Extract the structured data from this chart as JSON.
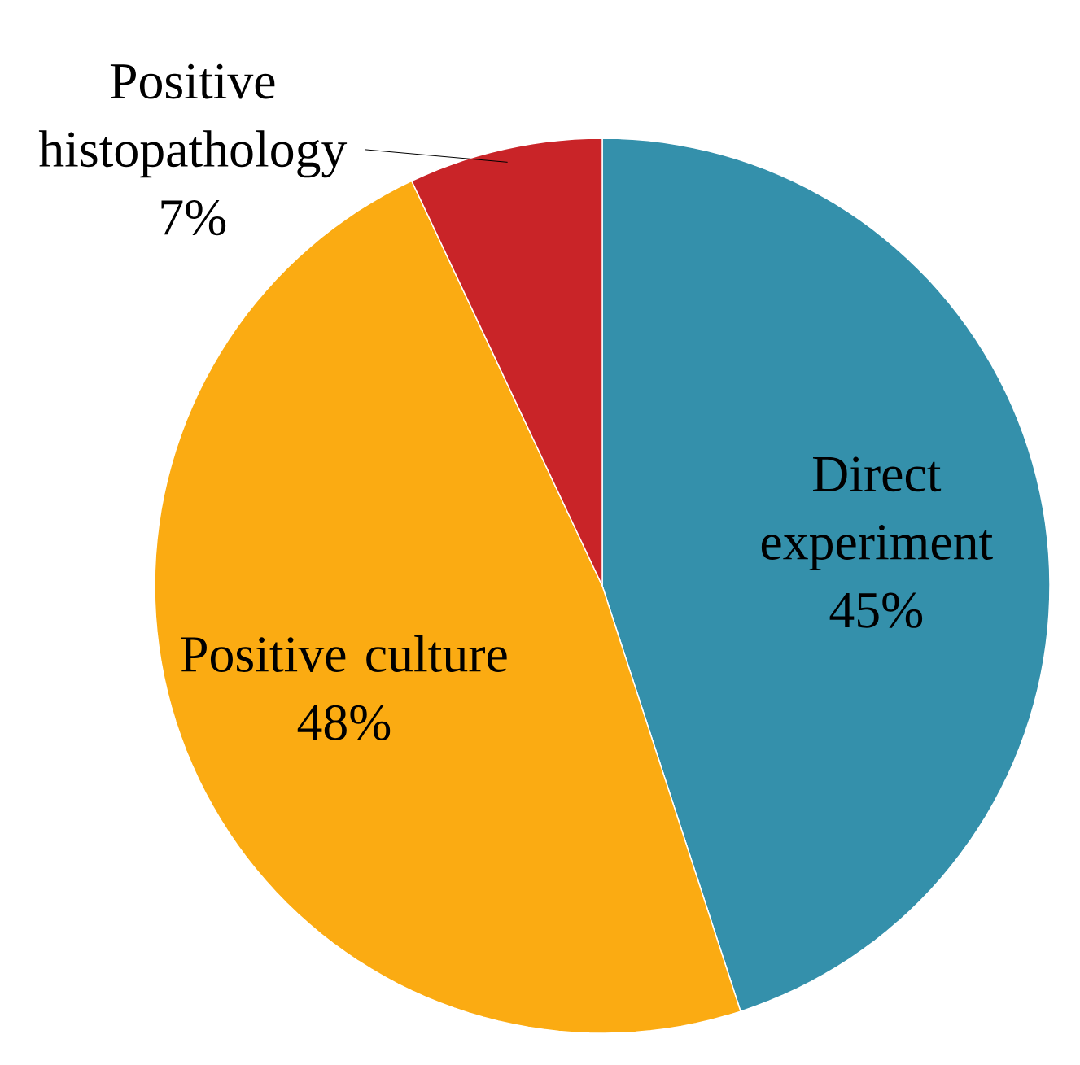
{
  "chart_data": {
    "type": "pie",
    "categories": [
      "Direct experiment",
      "Positive culture",
      "Positive histopathology"
    ],
    "values": [
      45,
      48,
      7
    ],
    "value_labels": [
      "45%",
      "48%",
      "7%"
    ],
    "colors": [
      "#3490ab",
      "#fbab12",
      "#c92428"
    ]
  }
}
